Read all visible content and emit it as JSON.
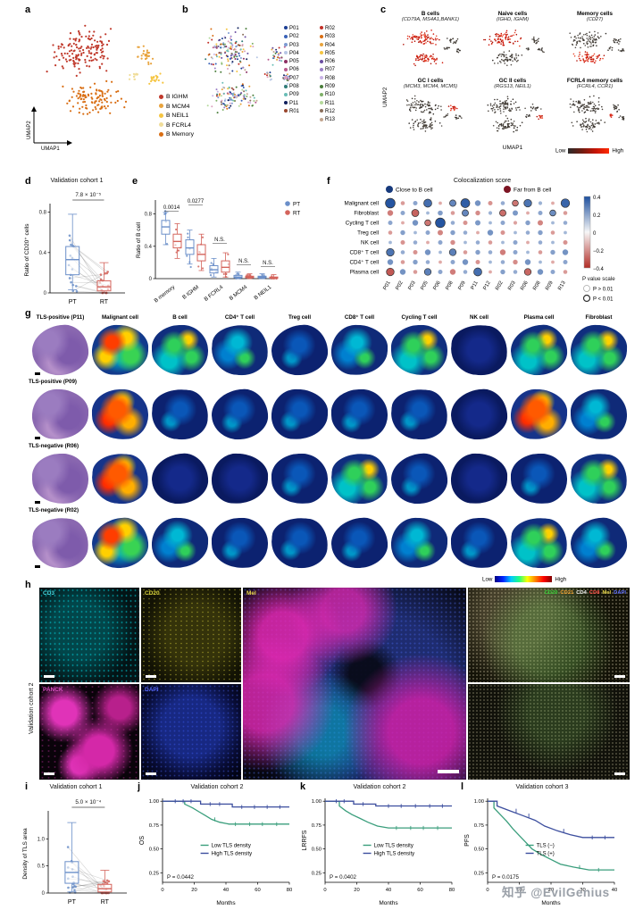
{
  "watermark": "知乎 @EvilGenius",
  "panels": {
    "a": {
      "label": "a",
      "axes": {
        "x": "UMAP1",
        "y": "UMAP2"
      },
      "legend": [
        {
          "label": "B IGHM",
          "color": "#c0392b"
        },
        {
          "label": "B MCM4",
          "color": "#e8a33d"
        },
        {
          "label": "B NEIL1",
          "color": "#f5c542"
        },
        {
          "label": "B FCRL4",
          "color": "#f0dd9a"
        },
        {
          "label": "B Memory",
          "color": "#d96e13"
        }
      ]
    },
    "b": {
      "label": "b",
      "samples_col1": [
        "P01",
        "P02",
        "P03",
        "P04",
        "P05",
        "P06",
        "P07",
        "P08",
        "P09",
        "P11",
        "R01"
      ],
      "samples_col2": [
        "R02",
        "R03",
        "R04",
        "R05",
        "R06",
        "R07",
        "R08",
        "R09",
        "R10",
        "R11",
        "R12",
        "R13"
      ],
      "palette": [
        "#1c3f94",
        "#3a62b8",
        "#7d9ad2",
        "#b7c6e4",
        "#8c2f62",
        "#b85a8c",
        "#dba1bf",
        "#2f7d78",
        "#69bdb6",
        "#0f1f5c",
        "#99452c",
        "#c23128",
        "#d96e13",
        "#e8a33d",
        "#f5c542",
        "#6b4fa1",
        "#9b7fc7",
        "#c9b3e6",
        "#4a7d3a",
        "#7fb069",
        "#b5d99c",
        "#8a6f5c",
        "#c2a58e"
      ]
    },
    "c": {
      "label": "c",
      "axes": {
        "x": "UMAP1",
        "y": "UMAP2"
      },
      "colorbar": {
        "low": "Low",
        "high": "High"
      },
      "subpanels": [
        {
          "title": "B cells",
          "genes": "(CD79A, MS4A1,BANK1)",
          "highlight": [
            0,
            1
          ]
        },
        {
          "title": "Naive cells",
          "genes": "(IGHD, IGHM)",
          "highlight": [
            0
          ]
        },
        {
          "title": "Memory cells",
          "genes": "(CD27)",
          "highlight": [
            1
          ]
        },
        {
          "title": "GC I cells",
          "genes": "(MCM3, MCM4, MCM5)",
          "highlight": [
            2
          ]
        },
        {
          "title": "GC II cells",
          "genes": "(RGS13, NEIL1)",
          "highlight": [
            3
          ]
        },
        {
          "title": "FCRL4 memory cells",
          "genes": "(FCRL4, CCR1)",
          "highlight": [
            4
          ]
        }
      ]
    },
    "d": {
      "label": "d",
      "title": "Validation cohort 1",
      "p": "7.8 × 10⁻⁵",
      "ylabel": "Ratio of CD20⁺ cells",
      "xcats": [
        "PT",
        "RT"
      ],
      "ylim": [
        0,
        0.85
      ],
      "yticks": [
        0,
        0.4,
        0.8
      ],
      "colors": {
        "PT": "#6b8fc9",
        "RT": "#d4645c"
      },
      "box": {
        "PT": {
          "lo": 0.03,
          "q1": 0.18,
          "med": 0.33,
          "q3": 0.46,
          "hi": 0.78
        },
        "RT": {
          "lo": 0.0,
          "q1": 0.02,
          "med": 0.06,
          "q3": 0.12,
          "hi": 0.3
        }
      }
    },
    "e": {
      "label": "e",
      "ylabel": "Ratio of B cell",
      "ylim": [
        0,
        0.95
      ],
      "yticks": [
        0,
        0.4,
        0.8
      ],
      "legend": [
        {
          "label": "PT",
          "color": "#6b8fc9"
        },
        {
          "label": "RT",
          "color": "#d4645c"
        }
      ],
      "groups": [
        {
          "label": "B memory",
          "p": "0.0014",
          "PT": {
            "lo": 0.42,
            "q1": 0.55,
            "med": 0.64,
            "q3": 0.72,
            "hi": 0.82
          },
          "RT": {
            "lo": 0.25,
            "q1": 0.38,
            "med": 0.46,
            "q3": 0.55,
            "hi": 0.68
          }
        },
        {
          "label": "B IGHM",
          "p": "0.0277",
          "PT": {
            "lo": 0.18,
            "q1": 0.3,
            "med": 0.38,
            "q3": 0.48,
            "hi": 0.6
          },
          "RT": {
            "lo": 0.1,
            "q1": 0.22,
            "med": 0.3,
            "q3": 0.42,
            "hi": 0.55
          }
        },
        {
          "label": "B FCRL4",
          "p": "N.S.",
          "PT": {
            "lo": 0.02,
            "q1": 0.07,
            "med": 0.11,
            "q3": 0.16,
            "hi": 0.25
          },
          "RT": {
            "lo": 0.02,
            "q1": 0.08,
            "med": 0.14,
            "q3": 0.22,
            "hi": 0.32
          }
        },
        {
          "label": "B MCM4",
          "p": "N.S.",
          "PT": {
            "lo": 0.0,
            "q1": 0.01,
            "med": 0.02,
            "q3": 0.04,
            "hi": 0.08
          },
          "RT": {
            "lo": 0.0,
            "q1": 0.01,
            "med": 0.02,
            "q3": 0.03,
            "hi": 0.06
          }
        },
        {
          "label": "B NEIL1",
          "p": "N.S.",
          "PT": {
            "lo": 0.0,
            "q1": 0.01,
            "med": 0.02,
            "q3": 0.03,
            "hi": 0.06
          },
          "RT": {
            "lo": 0.0,
            "q1": 0.005,
            "med": 0.01,
            "q3": 0.02,
            "hi": 0.05
          }
        }
      ]
    },
    "f": {
      "label": "f",
      "title": "Colocalization score",
      "close_label": "Close to B cell",
      "far_label": "Far from B cell",
      "close_color": "#173a7c",
      "far_color": "#7c1423",
      "rows": [
        "Malignant cell",
        "Fibroblast",
        "Cycling T cell",
        "Treg cell",
        "NK cell",
        "CD8⁺ T cell",
        "CD4⁺ T cell",
        "Plasma cell"
      ],
      "cols": [
        "P01",
        "P02",
        "P03",
        "P05",
        "P06",
        "P08",
        "P09",
        "P11",
        "P12",
        "R02",
        "R03",
        "R06",
        "R08",
        "R09",
        "R13"
      ],
      "values": [
        [
          0.38,
          -0.1,
          0.12,
          0.3,
          -0.06,
          0.22,
          0.35,
          0.18,
          -0.12,
          0.1,
          -0.2,
          0.28,
          0.08,
          -0.06,
          0.33
        ],
        [
          -0.18,
          0.12,
          -0.25,
          0.06,
          0.15,
          -0.1,
          0.22,
          -0.14,
          0.08,
          -0.22,
          0.16,
          -0.06,
          0.12,
          0.2,
          -0.1
        ],
        [
          0.12,
          -0.06,
          0.18,
          -0.2,
          0.38,
          0.1,
          -0.12,
          0.16,
          0.06,
          0.12,
          -0.08,
          0.14,
          -0.16,
          0.06,
          0.1
        ],
        [
          -0.1,
          0.14,
          0.06,
          0.12,
          -0.16,
          0.14,
          0.1,
          -0.06,
          0.18,
          -0.12,
          0.06,
          0.1,
          0.14,
          -0.1,
          0.06
        ],
        [
          0.06,
          -0.12,
          0.1,
          -0.06,
          0.12,
          -0.14,
          0.06,
          0.1,
          -0.1,
          0.06,
          0.12,
          -0.06,
          0.1,
          0.06,
          -0.12
        ],
        [
          0.28,
          0.1,
          -0.12,
          0.18,
          0.06,
          0.24,
          -0.1,
          0.14,
          0.1,
          -0.18,
          0.12,
          0.06,
          -0.1,
          0.14,
          0.18
        ],
        [
          0.18,
          -0.1,
          0.14,
          0.1,
          -0.06,
          0.12,
          0.18,
          -0.12,
          0.06,
          0.1,
          -0.14,
          0.18,
          0.06,
          -0.06,
          0.12
        ],
        [
          -0.28,
          0.18,
          -0.1,
          0.24,
          0.12,
          -0.18,
          0.1,
          0.3,
          -0.06,
          0.14,
          0.1,
          -0.24,
          0.18,
          0.12,
          -0.1
        ]
      ],
      "colorbar_ticks": [
        "0.4",
        "0.2",
        "0",
        "−0.2",
        "−0.4"
      ],
      "pscale": {
        "title": "P value scale",
        "gt": "P > 0.01",
        "lt": "P < 0.01"
      }
    },
    "g": {
      "label": "g",
      "row_labels": [
        "TLS-positive (P11)",
        "TLS-positive (P09)",
        "TLS-negative (R06)",
        "TLS-negative (R02)"
      ],
      "col_headers": [
        "Malignant cell",
        "B cell",
        "CD4⁺ T cell",
        "Treg cell",
        "CD8⁺ T cell",
        "Cycling T cell",
        "NK cell",
        "Plasma cell",
        "Fibroblast"
      ],
      "patterns": [
        [
          "he",
          "hot",
          "warm",
          "mid",
          "cool",
          "mid",
          "warm",
          "dark",
          "warm",
          "warm"
        ],
        [
          "he",
          "hot2",
          "cool",
          "cool",
          "cool",
          "cool",
          "cool",
          "dark",
          "hot2",
          "mid"
        ],
        [
          "he",
          "hot2",
          "dark",
          "dark",
          "cool",
          "warm",
          "cool",
          "dark",
          "cool",
          "warm"
        ],
        [
          "he",
          "hot",
          "mid",
          "cool",
          "cool",
          "cool",
          "mid",
          "cool",
          "warm",
          "mid"
        ]
      ],
      "colorbar": {
        "low": "Low",
        "high": "High"
      }
    },
    "h": {
      "label": "h",
      "side_label": "Validation cohort 2",
      "markers": {
        "cd3": {
          "text": "CD3",
          "color": "#45d8e0"
        },
        "cd20": {
          "text": "CD20",
          "color": "#d8d23a"
        },
        "panck": {
          "text": "PANCK",
          "color": "#e050c8"
        },
        "dapi": {
          "text": "DAPI",
          "color": "#5868ff"
        },
        "mel": {
          "text": "Mel",
          "color": "#e8d84a"
        },
        "composite": [
          {
            "text": "CD20",
            "color": "#35d435"
          },
          {
            "text": "CD21",
            "color": "#f0a030"
          },
          {
            "text": "CD4",
            "color": "#f5f5f5"
          },
          {
            "text": "CD8",
            "color": "#ff5045"
          },
          {
            "text": "Mel",
            "color": "#e8d84a"
          },
          {
            "text": "DAPI",
            "color": "#6070ff"
          }
        ]
      }
    },
    "i": {
      "label": "i",
      "title": "Validation cohort 1",
      "p": "5.0 × 10⁻⁴",
      "ylabel": "Density of TLS area",
      "xcats": [
        "PT",
        "RT"
      ],
      "ylim": [
        0,
        1.45
      ],
      "yticks": [
        0,
        0.5,
        1.0
      ],
      "colors": {
        "PT": "#6b8fc9",
        "RT": "#d4645c"
      },
      "box": {
        "PT": {
          "lo": 0.02,
          "q1": 0.18,
          "med": 0.38,
          "q3": 0.58,
          "hi": 1.3
        },
        "RT": {
          "lo": 0.0,
          "q1": 0.02,
          "med": 0.08,
          "q3": 0.16,
          "hi": 0.42
        }
      }
    },
    "j": {
      "label": "j",
      "title": "Validation cohort 2",
      "ylabel": "OS",
      "xlabel": "Months",
      "p": "P = 0.0442",
      "xlim": [
        0,
        80
      ],
      "xticks": [
        0,
        20,
        40,
        60,
        80
      ],
      "yticks": [
        0.25,
        0.5,
        0.75,
        1.0
      ],
      "series": [
        {
          "name": "Low TLS density",
          "color": "#3a9e7c",
          "points": [
            [
              0,
              1
            ],
            [
              14,
              1
            ],
            [
              14,
              0.97
            ],
            [
              19,
              0.93
            ],
            [
              23,
              0.89
            ],
            [
              27,
              0.85
            ],
            [
              31,
              0.81
            ],
            [
              36,
              0.78
            ],
            [
              42,
              0.76
            ],
            [
              80,
              0.76
            ]
          ],
          "censors": [
            [
              33,
              0.81
            ],
            [
              46,
              0.76
            ],
            [
              55,
              0.76
            ],
            [
              63,
              0.76
            ],
            [
              72,
              0.76
            ]
          ]
        },
        {
          "name": "High TLS density",
          "color": "#3c4e9e",
          "points": [
            [
              0,
              1
            ],
            [
              24,
              1
            ],
            [
              24,
              0.97
            ],
            [
              44,
              0.97
            ],
            [
              44,
              0.94
            ],
            [
              80,
              0.94
            ]
          ],
          "censors": [
            [
              8,
              1
            ],
            [
              13,
              1
            ],
            [
              18,
              1
            ],
            [
              30,
              0.97
            ],
            [
              36,
              0.97
            ],
            [
              50,
              0.94
            ],
            [
              58,
              0.94
            ],
            [
              66,
              0.94
            ],
            [
              74,
              0.94
            ]
          ]
        }
      ]
    },
    "k": {
      "label": "k",
      "title": "Validation cohort 2",
      "ylabel": "LRRFS",
      "xlabel": "Months",
      "p": "P = 0.0402",
      "xlim": [
        0,
        80
      ],
      "xticks": [
        0,
        20,
        40,
        60,
        80
      ],
      "yticks": [
        0.25,
        0.5,
        0.75,
        1.0
      ],
      "series": [
        {
          "name": "Low TLS density",
          "color": "#3a9e7c",
          "points": [
            [
              0,
              1
            ],
            [
              9,
              1
            ],
            [
              9,
              0.95
            ],
            [
              13,
              0.9
            ],
            [
              17,
              0.86
            ],
            [
              22,
              0.82
            ],
            [
              27,
              0.78
            ],
            [
              33,
              0.74
            ],
            [
              40,
              0.72
            ],
            [
              80,
              0.72
            ]
          ],
          "censors": [
            [
              45,
              0.72
            ],
            [
              54,
              0.72
            ],
            [
              62,
              0.72
            ],
            [
              71,
              0.72
            ]
          ]
        },
        {
          "name": "High TLS density",
          "color": "#3c4e9e",
          "points": [
            [
              0,
              1
            ],
            [
              18,
              1
            ],
            [
              18,
              0.97
            ],
            [
              32,
              0.97
            ],
            [
              32,
              0.95
            ],
            [
              80,
              0.95
            ]
          ],
          "censors": [
            [
              7,
              1
            ],
            [
              12,
              1
            ],
            [
              24,
              0.97
            ],
            [
              40,
              0.95
            ],
            [
              48,
              0.95
            ],
            [
              57,
              0.95
            ],
            [
              66,
              0.95
            ],
            [
              74,
              0.95
            ]
          ]
        }
      ]
    },
    "l": {
      "label": "l",
      "title": "Validation cohort 3",
      "ylabel": "PFS",
      "xlabel": "Months",
      "p": "P = 0.0175",
      "xlim": [
        0,
        40
      ],
      "xticks": [
        0,
        10,
        20,
        30,
        40
      ],
      "yticks": [
        0.25,
        0.5,
        0.75,
        1.0
      ],
      "series": [
        {
          "name": "TLS (−)",
          "color": "#3a9e7c",
          "points": [
            [
              0,
              1
            ],
            [
              2,
              1
            ],
            [
              2,
              0.93
            ],
            [
              4,
              0.86
            ],
            [
              6,
              0.79
            ],
            [
              8,
              0.71
            ],
            [
              10,
              0.64
            ],
            [
              12,
              0.57
            ],
            [
              14,
              0.5
            ],
            [
              17,
              0.44
            ],
            [
              20,
              0.39
            ],
            [
              23,
              0.34
            ],
            [
              27,
              0.31
            ],
            [
              32,
              0.28
            ],
            [
              40,
              0.28
            ]
          ],
          "censors": [
            [
              29,
              0.31
            ],
            [
              35,
              0.28
            ]
          ]
        },
        {
          "name": "TLS (+)",
          "color": "#3c4e9e",
          "points": [
            [
              0,
              1
            ],
            [
              3,
              1
            ],
            [
              3,
              0.95
            ],
            [
              7,
              0.9
            ],
            [
              11,
              0.85
            ],
            [
              15,
              0.8
            ],
            [
              18,
              0.74
            ],
            [
              22,
              0.69
            ],
            [
              26,
              0.65
            ],
            [
              30,
              0.62
            ],
            [
              40,
              0.62
            ]
          ],
          "censors": [
            [
              9,
              0.9
            ],
            [
              13,
              0.85
            ],
            [
              24,
              0.69
            ],
            [
              33,
              0.62
            ],
            [
              37,
              0.62
            ]
          ]
        }
      ]
    }
  }
}
